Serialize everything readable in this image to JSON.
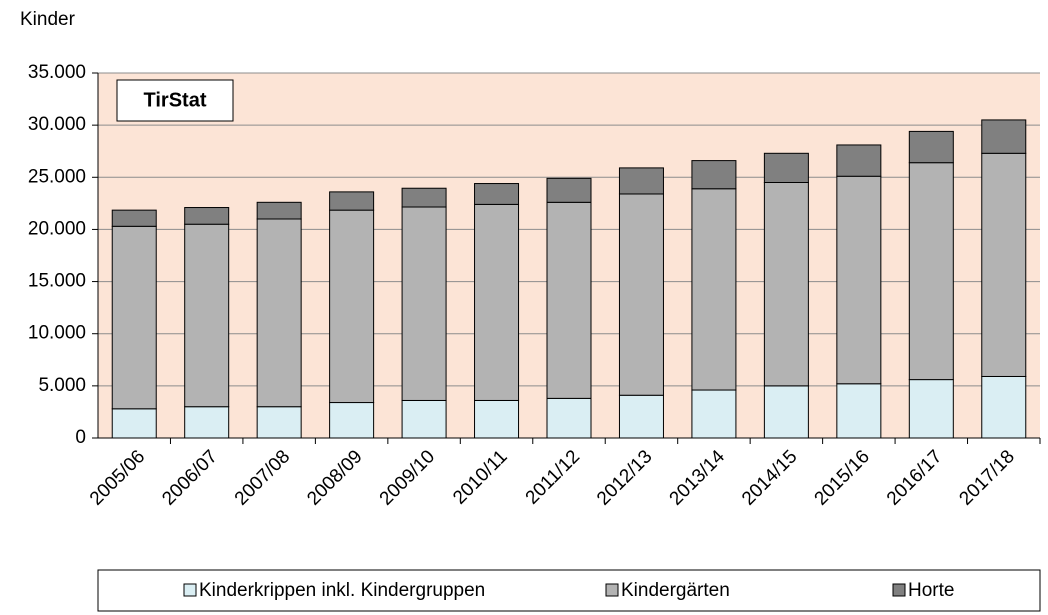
{
  "chart_data": {
    "type": "stacked_bar",
    "y_label": "Kinder",
    "annotation": "TirStat",
    "categories": [
      "2005/06",
      "2006/07",
      "2007/08",
      "2008/09",
      "2009/10",
      "2010/11",
      "2011/12",
      "2012/13",
      "2013/14",
      "2014/15",
      "2015/16",
      "2016/17",
      "2017/18"
    ],
    "series": [
      {
        "name": "Kinderkrippen inkl. Kindergruppen",
        "color": "#daeef3",
        "values": [
          2800,
          3000,
          3000,
          3400,
          3600,
          3600,
          3800,
          4100,
          4600,
          5000,
          5200,
          5600,
          5900
        ]
      },
      {
        "name": "Kindergärten",
        "color": "#b3b3b3",
        "values": [
          17500,
          17500,
          18000,
          18450,
          18550,
          18800,
          18800,
          19300,
          19300,
          19500,
          19900,
          20800,
          21400
        ]
      },
      {
        "name": "Horte",
        "color": "#808080",
        "values": [
          1550,
          1600,
          1600,
          1750,
          1800,
          2000,
          2300,
          2500,
          2700,
          2800,
          3000,
          3000,
          3200
        ]
      }
    ],
    "ylim": [
      0,
      35000
    ],
    "yticks": [
      0,
      {
        "value": 5000,
        "label": "5.000"
      },
      {
        "value": 10000,
        "label": "10.000"
      },
      {
        "value": 15000,
        "label": "15.000"
      },
      {
        "value": 20000,
        "label": "20.000"
      },
      {
        "value": 25000,
        "label": "25.000"
      },
      {
        "value": 30000,
        "label": "30.000"
      },
      {
        "value": 35000,
        "label": "35.000"
      }
    ],
    "grid": true,
    "legend": "bottom"
  }
}
